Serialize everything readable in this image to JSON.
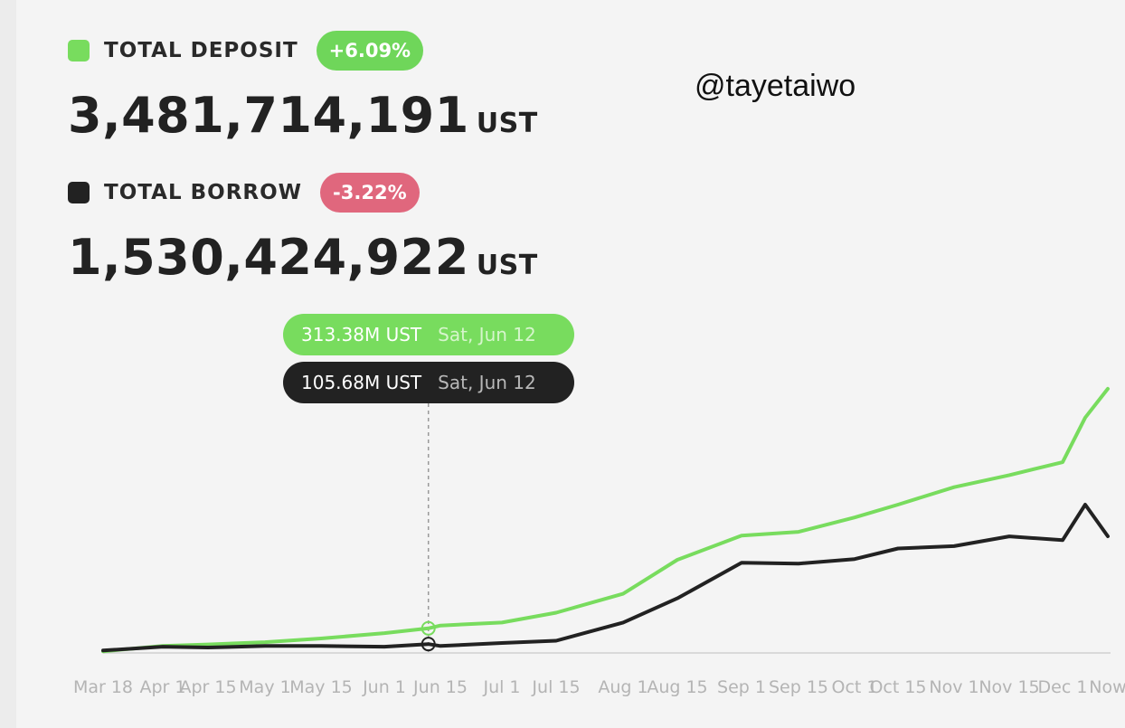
{
  "watermark": "@tayetaiwo",
  "deposit": {
    "label": "TOTAL DEPOSIT",
    "change": "+6.09%",
    "value": "3,481,714,191",
    "unit": "UST"
  },
  "borrow": {
    "label": "TOTAL BORROW",
    "change": "-3.22%",
    "value": "1,530,424,922",
    "unit": "UST"
  },
  "tooltip": {
    "deposit": {
      "value": "313.38M UST",
      "date": "Sat, Jun 12"
    },
    "borrow": {
      "value": "105.68M UST",
      "date": "Sat, Jun 12"
    }
  },
  "colors": {
    "deposit": "#78dc5e",
    "borrow": "#222222",
    "positive": "#6fd65a",
    "negative": "#e0677d",
    "axis_text": "#b4b4b4"
  },
  "chart_data": {
    "type": "line",
    "x_tick_labels": [
      "Mar 18",
      "Apr 1",
      "Apr 15",
      "May 1",
      "May 15",
      "Jun 1",
      "Jun 15",
      "Jul 1",
      "Jul 15",
      "Aug 1",
      "Aug 15",
      "Sep 1",
      "Sep 15",
      "Oct 1",
      "Oct 15",
      "Nov 1",
      "Nov 15",
      "Dec 1",
      "Now"
    ],
    "x": [
      "Mar 18",
      "Apr 1",
      "Apr 15",
      "May 1",
      "May 15",
      "Jun 1",
      "Jun 12",
      "Jun 15",
      "Jul 1",
      "Jul 15",
      "Aug 1",
      "Aug 15",
      "Sep 1",
      "Sep 15",
      "Oct 1",
      "Oct 15",
      "Nov 1",
      "Nov 15",
      "Dec 1",
      "Dec 7",
      "Now"
    ],
    "series": [
      {
        "key": "deposit",
        "values": [
          10,
          80,
          100,
          130,
          180,
          250,
          313.38,
          350,
          390,
          520,
          770,
          1220,
          1540,
          1590,
          1780,
          1950,
          2180,
          2340,
          2510,
          3100,
          3481.7
        ]
      },
      {
        "key": "borrow",
        "values": [
          20,
          70,
          60,
          80,
          80,
          70,
          105.68,
          80,
          120,
          150,
          390,
          710,
          1180,
          1170,
          1230,
          1370,
          1400,
          1530,
          1480,
          1950,
          1530.4
        ]
      }
    ],
    "highlight": {
      "x": "Jun 12",
      "deposit": 313.38,
      "borrow": 105.68
    },
    "grid": false,
    "legend": "none"
  }
}
